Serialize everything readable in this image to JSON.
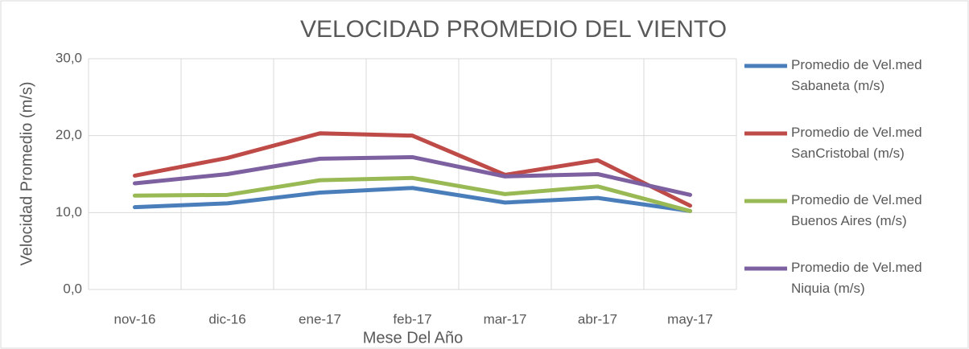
{
  "chart_data": {
    "type": "line",
    "title": "VELOCIDAD PROMEDIO DEL VIENTO",
    "x_label": "Mese Del Año",
    "y_label": "Velocidad Promedio (m/s)",
    "categories": [
      "nov-16",
      "dic-16",
      "ene-17",
      "feb-17",
      "mar-17",
      "abr-17",
      "may-17"
    ],
    "series": [
      {
        "name": "Promedio de Vel.med Sabaneta (m/s)",
        "color": "#4a7ebb",
        "values": [
          10.7,
          11.2,
          12.6,
          13.2,
          11.3,
          11.9,
          10.2
        ]
      },
      {
        "name": "Promedio de Vel.med SanCristobal (m/s)",
        "color": "#be4b48",
        "values": [
          14.8,
          17.1,
          20.3,
          20.0,
          14.9,
          16.8,
          10.9
        ]
      },
      {
        "name": "Promedio de Vel.med Buenos Aires (m/s)",
        "color": "#98b954",
        "values": [
          12.2,
          12.3,
          14.2,
          14.5,
          12.4,
          13.4,
          10.2
        ]
      },
      {
        "name": "Promedio de Vel.med Niquia (m/s)",
        "color": "#7d60a0",
        "values": [
          13.8,
          15.0,
          17.0,
          17.2,
          14.7,
          15.0,
          12.3
        ]
      }
    ],
    "ylim": [
      0,
      30
    ],
    "yticks": [
      {
        "value": 0,
        "label": "0,0"
      },
      {
        "value": 10,
        "label": "10,0"
      },
      {
        "value": 20,
        "label": "20,0"
      },
      {
        "value": 30,
        "label": "30,0"
      }
    ],
    "grid": true,
    "legend": "right"
  }
}
